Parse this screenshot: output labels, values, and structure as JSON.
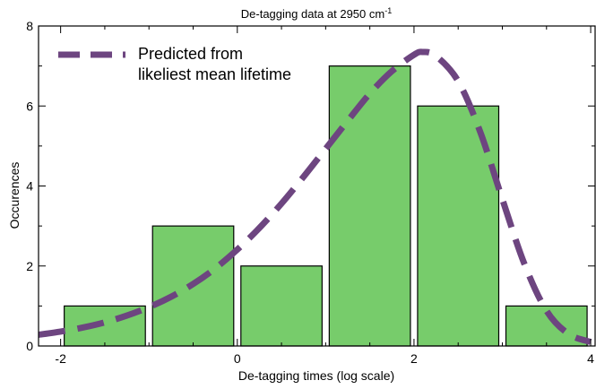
{
  "chart_data": {
    "type": "bar",
    "title": "De-tagging data at 2950 cm",
    "title_superscript": "-1",
    "xlabel": "De-tagging times (log scale)",
    "ylabel": "Occurences",
    "xlim": [
      -2.25,
      4.05
    ],
    "ylim": [
      0,
      8
    ],
    "x_ticks": [
      -2,
      0,
      2,
      4
    ],
    "y_ticks": [
      0,
      2,
      4,
      6,
      8
    ],
    "x_tick_labels": [
      "-2",
      "0",
      "2",
      "4"
    ],
    "y_tick_labels": [
      "0",
      "2",
      "4",
      "6",
      "8"
    ],
    "grid": false,
    "bars": [
      {
        "x_start": -2.0,
        "x_end": -1.0,
        "value": 1
      },
      {
        "x_start": -1.0,
        "x_end": 0.0,
        "value": 3
      },
      {
        "x_start": 0.0,
        "x_end": 1.0,
        "value": 2
      },
      {
        "x_start": 1.0,
        "x_end": 2.0,
        "value": 7
      },
      {
        "x_start": 2.0,
        "x_end": 3.0,
        "value": 6
      },
      {
        "x_start": 3.0,
        "x_end": 4.0,
        "value": 1
      }
    ],
    "series": [
      {
        "name": "Predicted from likeliest mean lifetime",
        "type": "line",
        "style": "dashed",
        "x": [
          -2.25,
          -2.0,
          -1.75,
          -1.5,
          -1.25,
          -1.0,
          -0.75,
          -0.5,
          -0.25,
          0.0,
          0.25,
          0.5,
          0.75,
          1.0,
          1.25,
          1.5,
          1.75,
          2.0,
          2.1,
          2.25,
          2.5,
          2.75,
          3.0,
          3.25,
          3.5,
          3.75,
          4.0
        ],
        "values": [
          0.28,
          0.36,
          0.46,
          0.59,
          0.76,
          0.97,
          1.23,
          1.55,
          1.94,
          2.41,
          2.95,
          3.56,
          4.23,
          4.93,
          5.63,
          6.31,
          6.87,
          7.28,
          7.35,
          7.25,
          6.62,
          5.35,
          3.67,
          2.05,
          0.88,
          0.3,
          0.1
        ]
      }
    ],
    "legend": {
      "placement": "top-left",
      "lines": [
        "Predicted from",
        "likeliest mean lifetime"
      ]
    },
    "colors": {
      "bar_fill": "#77cc6b",
      "bar_stroke": "#000000",
      "line": "#6d4580",
      "axis": "#000000"
    }
  }
}
